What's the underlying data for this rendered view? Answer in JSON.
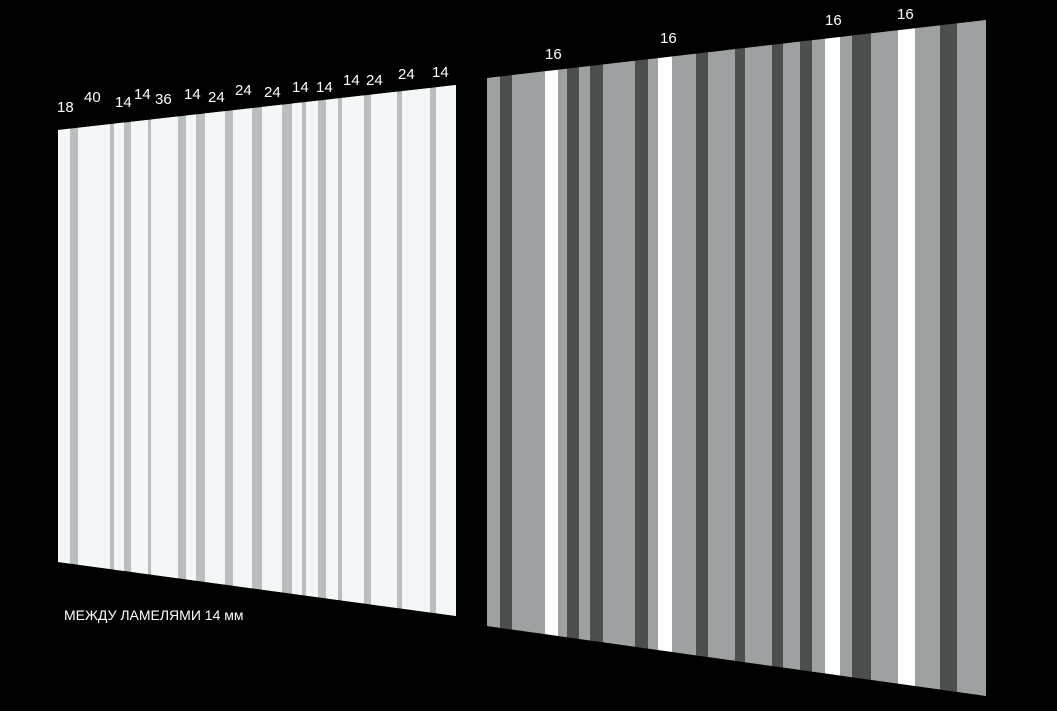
{
  "left_panel": {
    "labels": [
      "18",
      "40",
      "14",
      "14",
      "36",
      "14",
      "24",
      "24",
      "24",
      "14",
      "14",
      "14",
      "24",
      "24",
      "14"
    ],
    "caption": "МЕЖДУ ЛАМЕЛЯМИ 14 мм",
    "slat_color": "#f4f7f7",
    "gap_color": "#b9bebe"
  },
  "right_panel": {
    "labels": [
      "16",
      "16",
      "16",
      "16"
    ],
    "light_color": "#9da1a1",
    "dark_color": "#4d4f4f",
    "gap_color": "#ffffff"
  }
}
